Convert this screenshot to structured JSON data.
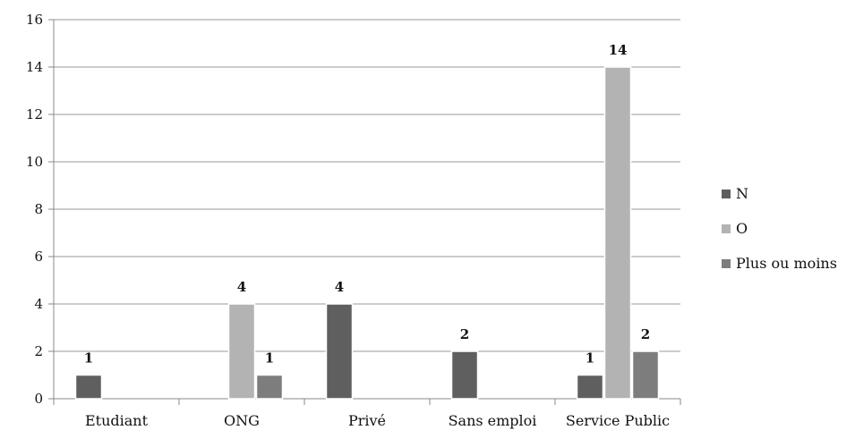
{
  "chart_data": {
    "type": "bar",
    "categories": [
      "Etudiant",
      "ONG",
      "Privé",
      "Sans emploi",
      "Service Public"
    ],
    "series": [
      {
        "name": "N",
        "values": [
          1,
          0,
          4,
          2,
          1
        ],
        "color": "#5f5f5f"
      },
      {
        "name": "O",
        "values": [
          0,
          4,
          0,
          0,
          14
        ],
        "color": "#b3b3b3"
      },
      {
        "name": "Plus ou moins",
        "values": [
          0,
          1,
          0,
          0,
          2
        ],
        "color": "#7d7d7d"
      }
    ],
    "data_labels": [
      [
        "1",
        "",
        "4",
        "2",
        "1"
      ],
      [
        "",
        "4",
        "",
        "",
        "14"
      ],
      [
        "",
        "1",
        "",
        "",
        "2"
      ]
    ],
    "ylim": [
      0,
      16
    ],
    "yticks": [
      "0",
      "2",
      "4",
      "6",
      "8",
      "10",
      "12",
      "14",
      "16"
    ],
    "grid": true,
    "legend_position": "right"
  }
}
